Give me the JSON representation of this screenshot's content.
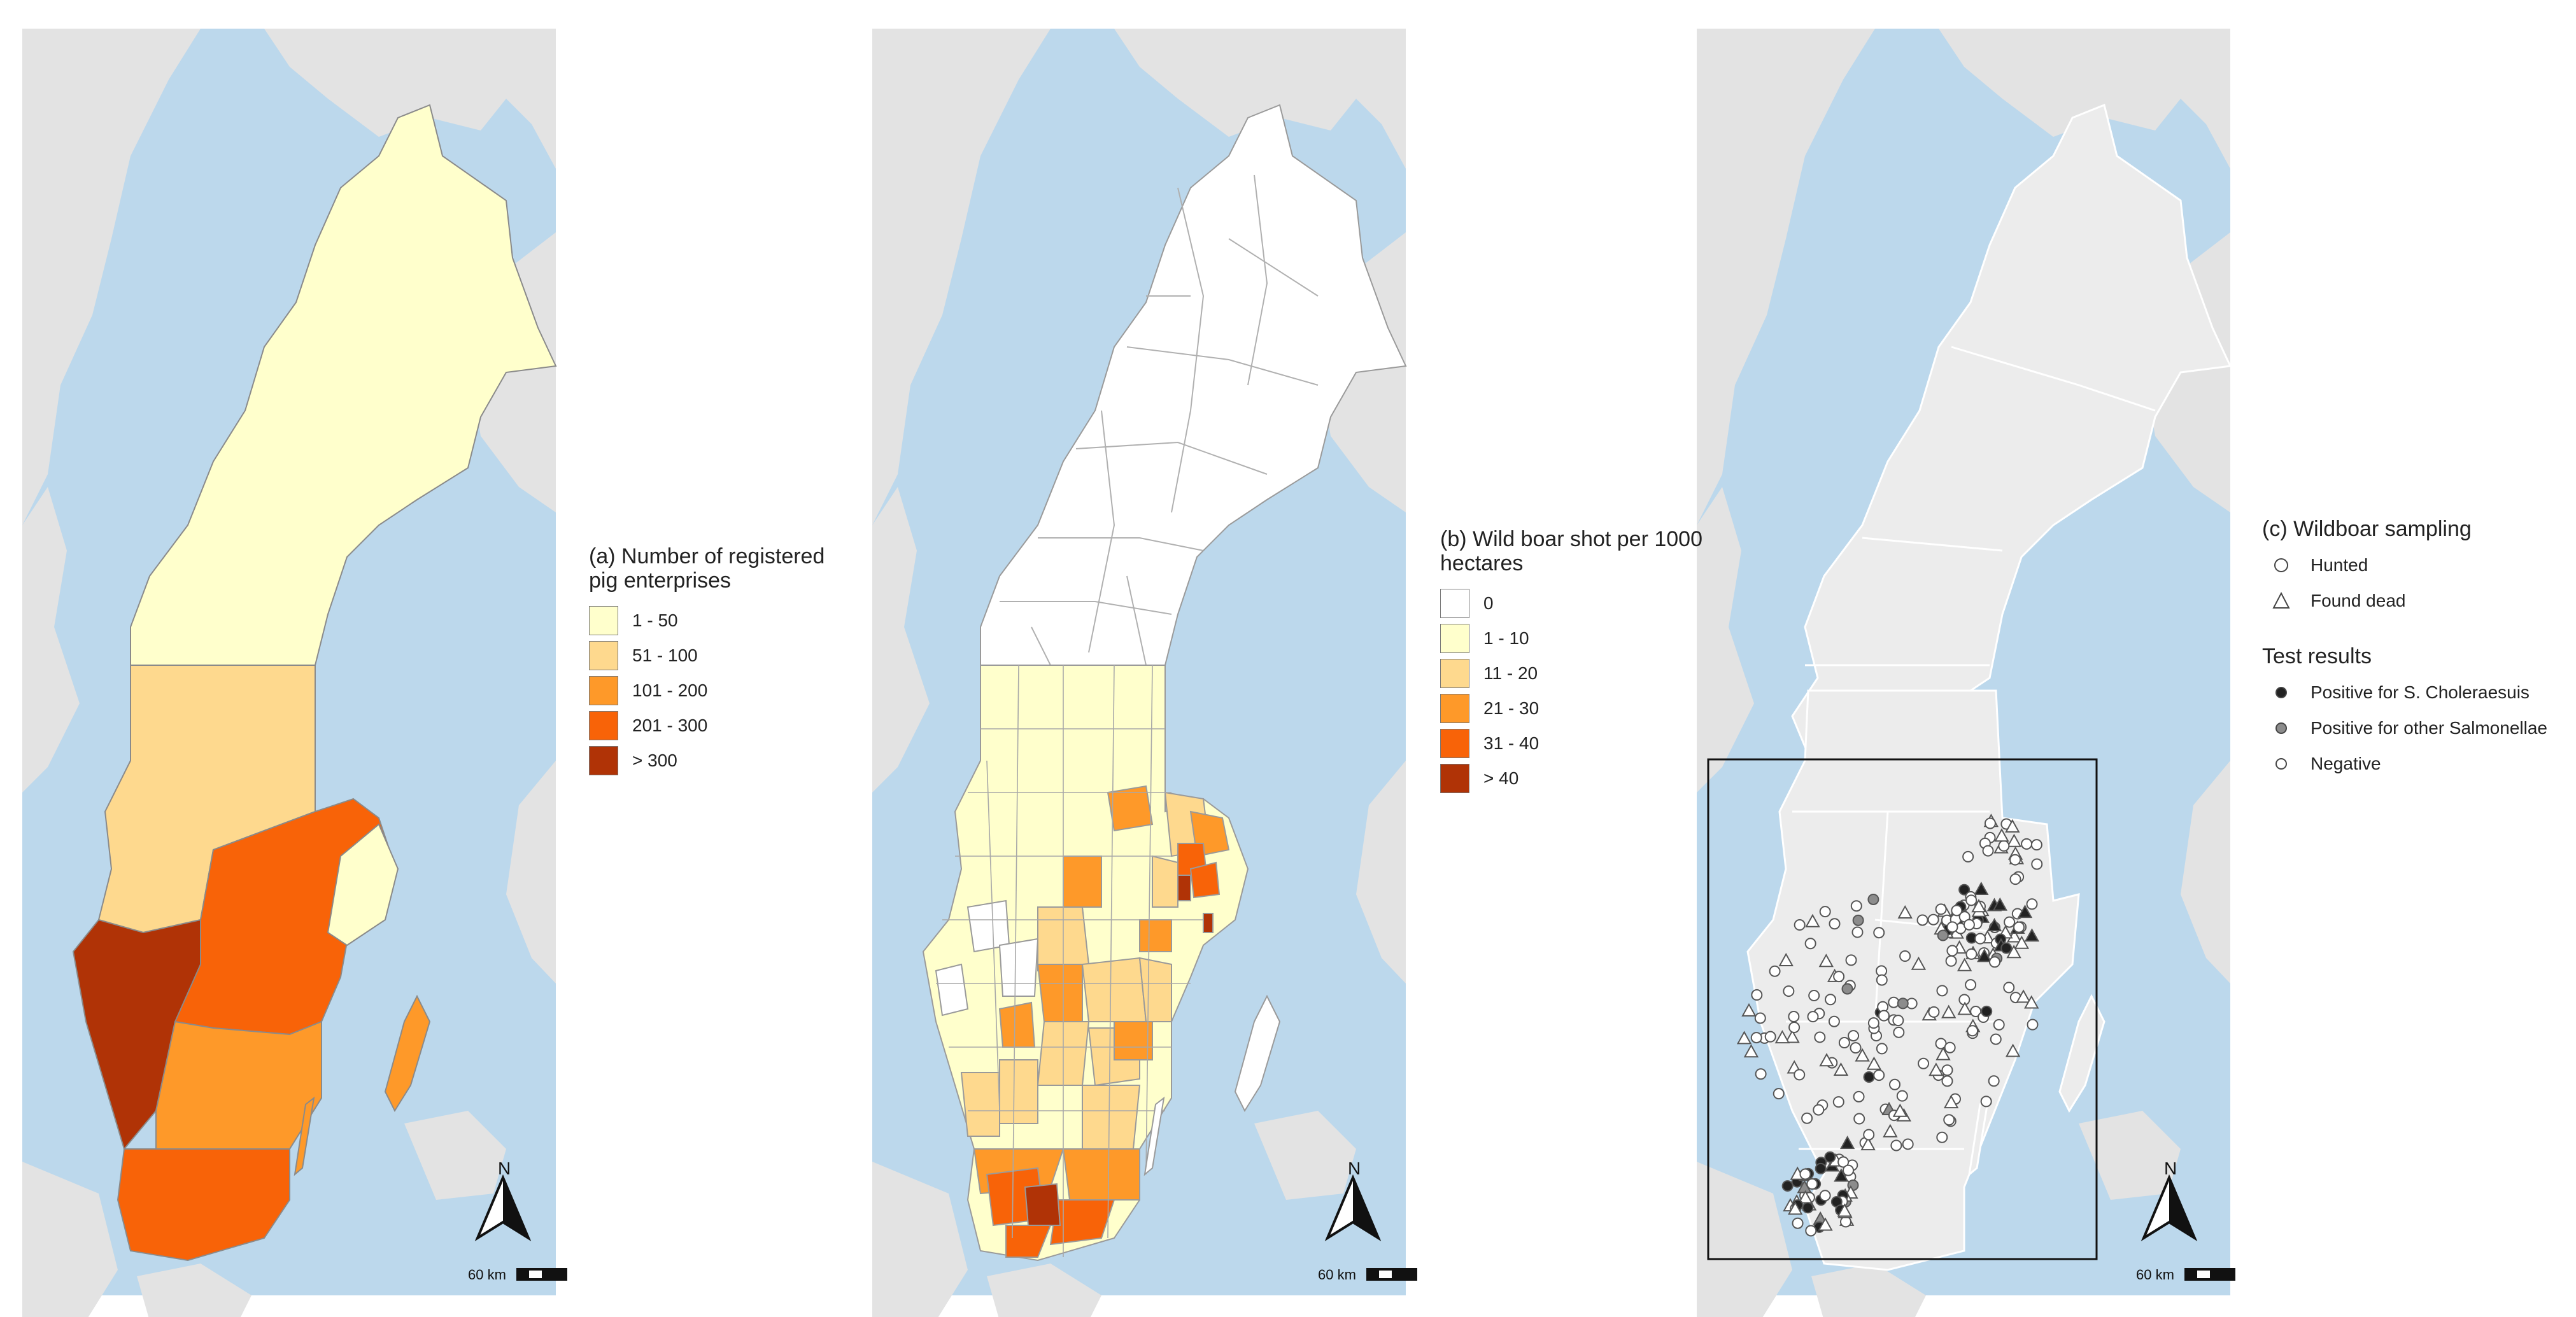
{
  "panels": [
    {
      "id": "a",
      "legend": {
        "title": "(a) Number of registered pig enterprises",
        "items": [
          {
            "label": "1 - 50",
            "color": "#ffffcc"
          },
          {
            "label": "51 - 100",
            "color": "#fed98e"
          },
          {
            "label": "101 - 200",
            "color": "#fe9929"
          },
          {
            "label": "201 - 300",
            "color": "#f86308"
          },
          {
            "label": "> 300",
            "color": "#b03306"
          }
        ]
      },
      "scale_label": "60 km",
      "north_label": "N"
    },
    {
      "id": "b",
      "legend": {
        "title": "(b) Wild boar shot per 1000 hectares",
        "items": [
          {
            "label": "0",
            "color": "#ffffff"
          },
          {
            "label": "1 - 10",
            "color": "#ffffcc"
          },
          {
            "label": "11 - 20",
            "color": "#fed98e"
          },
          {
            "label": "21 - 30",
            "color": "#fe9929"
          },
          {
            "label": "31 - 40",
            "color": "#f86308"
          },
          {
            "label": "> 40",
            "color": "#b03306"
          }
        ]
      },
      "scale_label": "60 km",
      "north_label": "N"
    },
    {
      "id": "c",
      "legend": {
        "title": "(c) Wildboar sampling",
        "sampling": [
          {
            "label": "Hunted",
            "symbol": "circle-icon"
          },
          {
            "label": "Found dead",
            "symbol": "triangle-icon"
          }
        ],
        "results_title": "Test results",
        "results": [
          {
            "label": "Positive for S. Choleraesuis",
            "color": "#222222"
          },
          {
            "label": "Positive for other Salmonellae",
            "color": "#8c8c8c"
          },
          {
            "label": "Negative",
            "color": "#ffffff"
          }
        ]
      },
      "scale_label": "60 km",
      "north_label": "N"
    }
  ],
  "colors": {
    "sea": "#bcd8ec",
    "neighbor_land": "#e3e3e3",
    "sweden_land_c": "#ececec",
    "border_lines": "#9a9a9a"
  }
}
